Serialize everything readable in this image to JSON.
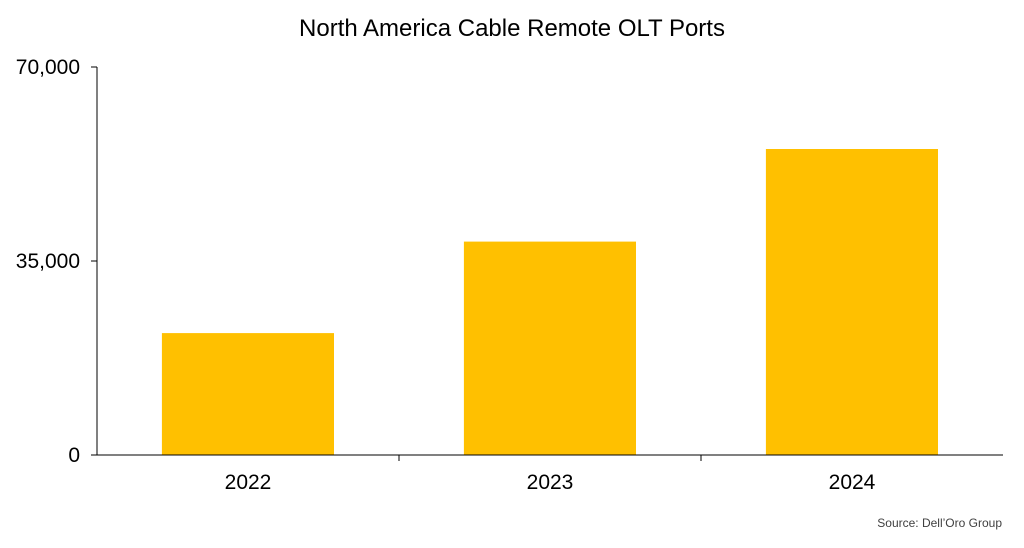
{
  "chart_data": {
    "type": "bar",
    "title": "North America Cable Remote OLT Ports",
    "categories": [
      "2022",
      "2023",
      "2024"
    ],
    "values": [
      22000,
      38500,
      55200
    ],
    "xlabel": "",
    "ylabel": "",
    "ylim": [
      0,
      70000
    ],
    "y_ticks": [
      0,
      35000,
      70000
    ],
    "y_tick_labels": [
      "0",
      "35,000",
      "70,000"
    ],
    "bar_color": "#FFC000",
    "grid": false,
    "legend": "none"
  },
  "source": "Source: Dell’Oro Group"
}
